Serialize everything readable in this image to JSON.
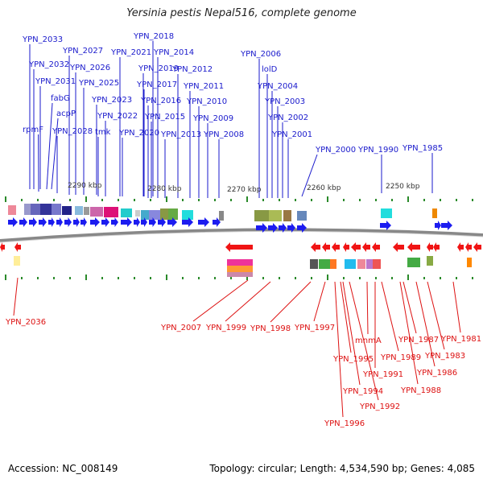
{
  "title": "Yersinia pestis Nepal516, complete genome",
  "footer": {
    "accession": "Accession: NC_008149",
    "topology": "Topology: circular; Length: 4,534,590 bp; Genes: 4,085"
  },
  "colors": {
    "top_label": "#1a1acc",
    "bottom_label": "#dd1111",
    "forward_arrow": "#1c1cf0",
    "reverse_arrow": "#f01414",
    "backbone": "#888888",
    "tick": "#2a8a2a"
  },
  "scale_labels": [
    "2290 kbp",
    "2280 kbp",
    "2270 kbp",
    "2260 kbp",
    "2250 kbp"
  ],
  "top_genes": [
    "YPN_2033",
    "YPN_2032",
    "YPN_2031",
    "fabG",
    "acpP",
    "rpmF",
    "YPN_2028",
    "YPN_2027",
    "YPN_2026",
    "YPN_2025",
    "YPN_2023",
    "tmk",
    "YPN_2022",
    "YPN_2021",
    "YPN_2020",
    "YPN_2019",
    "YPN_2018",
    "YPN_2017",
    "YPN_2016",
    "YPN_2015",
    "YPN_2014",
    "YPN_2013",
    "YPN_2012",
    "YPN_2011",
    "YPN_2010",
    "YPN_2009",
    "YPN_2008",
    "YPN_2006",
    "lolD",
    "YPN_2004",
    "YPN_2003",
    "YPN_2002",
    "YPN_2001",
    "YPN_2000",
    "YPN_1990",
    "YPN_1985"
  ],
  "bottom_genes": [
    "YPN_2036",
    "YPN_2007",
    "YPN_1999",
    "YPN_1998",
    "YPN_1997",
    "YPN_1995",
    "YPN_1994",
    "YPN_1996",
    "mnmA",
    "YPN_1989",
    "YPN_1991",
    "YPN_1992",
    "YPN_1987",
    "YPN_1988",
    "YPN_1983",
    "YPN_1986",
    "YPN_1981"
  ]
}
